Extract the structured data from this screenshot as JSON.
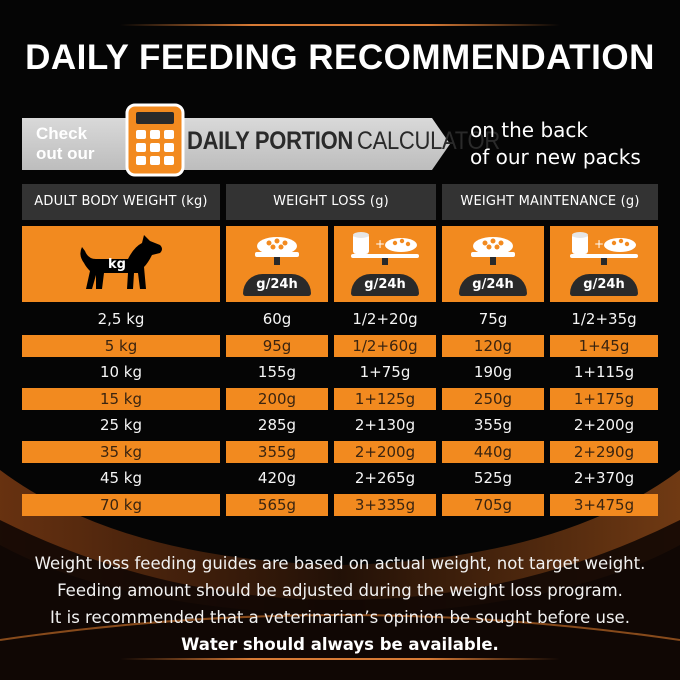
{
  "title": "DAILY FEEDING RECOMMENDATION",
  "promo": {
    "check_line1": "Check",
    "check_line2": "out our",
    "calc_word1": "DAILY PORTION",
    "calc_word2": "CALCULATOR",
    "back_line1": "on the back",
    "back_line2": "of our new packs",
    "icon": "calculator-icon"
  },
  "table": {
    "headers": [
      "ADULT BODY WEIGHT (kg)",
      "WEIGHT LOSS (g)",
      "WEIGHT MAINTENANCE (g)"
    ],
    "dog_label": "kg",
    "per_day_label": "g/24h",
    "rows": [
      {
        "weight": "2,5 kg",
        "loss_dry": "60g",
        "loss_mix": "1/2+20g",
        "maint_dry": "75g",
        "maint_mix": "1/2+35g"
      },
      {
        "weight": "5 kg",
        "loss_dry": "95g",
        "loss_mix": "1/2+60g",
        "maint_dry": "120g",
        "maint_mix": "1+45g"
      },
      {
        "weight": "10 kg",
        "loss_dry": "155g",
        "loss_mix": "1+75g",
        "maint_dry": "190g",
        "maint_mix": "1+115g"
      },
      {
        "weight": "15 kg",
        "loss_dry": "200g",
        "loss_mix": "1+125g",
        "maint_dry": "250g",
        "maint_mix": "1+175g"
      },
      {
        "weight": "25 kg",
        "loss_dry": "285g",
        "loss_mix": "2+130g",
        "maint_dry": "355g",
        "maint_mix": "2+200g"
      },
      {
        "weight": "35 kg",
        "loss_dry": "355g",
        "loss_mix": "2+200g",
        "maint_dry": "440g",
        "maint_mix": "2+290g"
      },
      {
        "weight": "45 kg",
        "loss_dry": "420g",
        "loss_mix": "2+265g",
        "maint_dry": "525g",
        "maint_mix": "2+370g"
      },
      {
        "weight": "70 kg",
        "loss_dry": "565g",
        "loss_mix": "3+335g",
        "maint_dry": "705g",
        "maint_mix": "3+475g"
      }
    ]
  },
  "notes": {
    "line1": "Weight loss feeding guides are based on actual weight, not target weight.",
    "line2": "Feeding amount should be adjusted during the weight loss program.",
    "line3": "It is recommended that a veterinarian’s opinion be sought before use.",
    "line4": "Water should always be available."
  },
  "colors": {
    "accent": "#f28a1f",
    "header_bg": "#333333",
    "background": "#050505"
  }
}
